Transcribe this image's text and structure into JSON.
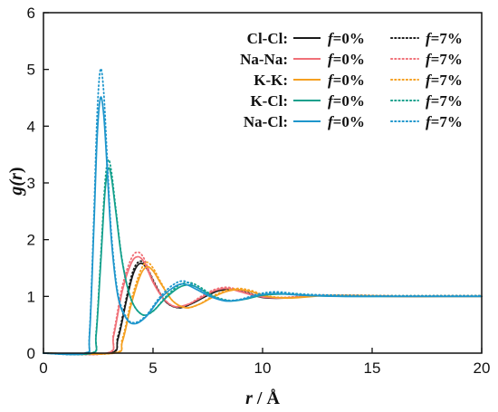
{
  "chart_data": {
    "type": "line",
    "xlabel_var": "r",
    "xlabel_unit": " / Å",
    "ylabel_prefix": "g(",
    "ylabel_var": "r",
    "ylabel_suffix": ")",
    "xlim": [
      0,
      20
    ],
    "ylim": [
      0,
      6
    ],
    "xticks": [
      0,
      5,
      10,
      15,
      20
    ],
    "yticks": [
      0,
      1,
      2,
      3,
      4,
      5,
      6
    ],
    "grid": false,
    "legend_position": "top-right",
    "legend": [
      {
        "pair": "Cl-Cl:",
        "solid_label": "f=0%",
        "dotted_label": "f=7%",
        "color": "#1a1a1a"
      },
      {
        "pair": "Na-Na:",
        "solid_label": "f=0%",
        "dotted_label": "f=7%",
        "color": "#f07078"
      },
      {
        "pair": "K-K:",
        "solid_label": "f=0%",
        "dotted_label": "f=7%",
        "color": "#f5a020"
      },
      {
        "pair": "K-Cl:",
        "solid_label": "f=0%",
        "dotted_label": "f=7%",
        "color": "#13a08c"
      },
      {
        "pair": "Na-Cl:",
        "solid_label": "f=0%",
        "dotted_label": "f=7%",
        "color": "#1e96cc"
      }
    ],
    "series": [
      {
        "name": "Cl-Cl: f=0%",
        "style": "solid",
        "color": "#1a1a1a",
        "x": [
          0,
          3.0,
          3.4,
          3.8,
          4.1,
          4.4,
          4.7,
          5.1,
          5.6,
          6.2,
          6.8,
          7.4,
          8.0,
          8.6,
          9.3,
          10.0,
          11.0,
          12.5,
          14.0,
          16.0,
          18.0,
          20.0
        ],
        "y": [
          0,
          0,
          0.25,
          0.95,
          1.4,
          1.58,
          1.5,
          1.2,
          0.9,
          0.8,
          0.88,
          1.0,
          1.1,
          1.12,
          1.06,
          0.98,
          0.97,
          1.01,
          1.01,
          1.0,
          1.0,
          1.0
        ]
      },
      {
        "name": "Cl-Cl: f=7%",
        "style": "dotted",
        "color": "#1a1a1a",
        "x": [
          0,
          3.0,
          3.4,
          3.8,
          4.1,
          4.4,
          4.7,
          5.1,
          5.6,
          6.2,
          6.8,
          7.4,
          8.0,
          8.6,
          9.3,
          10.0,
          11.0,
          12.5,
          14.0,
          16.0,
          18.0,
          20.0
        ],
        "y": [
          0,
          0,
          0.3,
          1.0,
          1.46,
          1.62,
          1.53,
          1.22,
          0.9,
          0.8,
          0.88,
          1.02,
          1.12,
          1.14,
          1.07,
          0.99,
          0.98,
          1.02,
          1.02,
          1.01,
          1.01,
          1.01
        ]
      },
      {
        "name": "Na-Na: f=0%",
        "style": "solid",
        "color": "#f07078",
        "x": [
          0,
          2.9,
          3.2,
          3.6,
          4.0,
          4.3,
          4.6,
          5.0,
          5.5,
          6.0,
          6.6,
          7.2,
          7.8,
          8.4,
          9.0,
          9.8,
          10.8,
          12.5,
          14.0,
          16.0,
          18.0,
          20.0
        ],
        "y": [
          0,
          0,
          0.3,
          1.1,
          1.58,
          1.7,
          1.6,
          1.25,
          0.95,
          0.82,
          0.86,
          0.98,
          1.1,
          1.14,
          1.08,
          1.0,
          0.97,
          1.01,
          1.01,
          1.0,
          1.0,
          1.0
        ]
      },
      {
        "name": "Na-Na: f=7%",
        "style": "dotted",
        "color": "#f07078",
        "x": [
          0,
          2.9,
          3.2,
          3.6,
          4.0,
          4.3,
          4.6,
          5.0,
          5.5,
          6.0,
          6.6,
          7.2,
          7.8,
          8.4,
          9.0,
          9.8,
          10.8,
          12.5,
          14.0,
          16.0,
          18.0,
          20.0
        ],
        "y": [
          0,
          0,
          0.35,
          1.18,
          1.66,
          1.78,
          1.66,
          1.28,
          0.96,
          0.82,
          0.86,
          1.0,
          1.12,
          1.16,
          1.1,
          1.01,
          0.98,
          1.02,
          1.02,
          1.01,
          1.01,
          1.01
        ]
      },
      {
        "name": "K-K: f=0%",
        "style": "solid",
        "color": "#f5a020",
        "x": [
          0,
          3.2,
          3.6,
          4.0,
          4.4,
          4.7,
          5.0,
          5.4,
          5.9,
          6.5,
          7.1,
          7.7,
          8.3,
          8.9,
          9.5,
          10.2,
          11.2,
          12.8,
          14.5,
          16.0,
          18.0,
          20.0
        ],
        "y": [
          0,
          0,
          0.2,
          0.85,
          1.35,
          1.52,
          1.45,
          1.2,
          0.92,
          0.8,
          0.86,
          0.98,
          1.08,
          1.12,
          1.08,
          1.0,
          0.97,
          1.01,
          1.01,
          1.0,
          1.0,
          1.0
        ]
      },
      {
        "name": "K-K: f=7%",
        "style": "dotted",
        "color": "#f5a020",
        "x": [
          0,
          3.2,
          3.6,
          4.0,
          4.4,
          4.7,
          5.0,
          5.4,
          5.9,
          6.5,
          7.1,
          7.7,
          8.3,
          8.9,
          9.5,
          10.2,
          11.2,
          12.8,
          14.5,
          16.0,
          18.0,
          20.0
        ],
        "y": [
          0,
          0,
          0.25,
          0.92,
          1.42,
          1.6,
          1.5,
          1.22,
          0.92,
          0.8,
          0.86,
          1.0,
          1.1,
          1.14,
          1.1,
          1.01,
          0.98,
          1.02,
          1.02,
          1.01,
          1.01,
          1.01
        ]
      },
      {
        "name": "K-Cl: f=0%",
        "style": "solid",
        "color": "#13a08c",
        "x": [
          0,
          2.2,
          2.4,
          2.6,
          2.8,
          2.95,
          3.1,
          3.3,
          3.6,
          4.0,
          4.5,
          5.0,
          5.6,
          6.2,
          6.7,
          7.2,
          7.8,
          8.5,
          9.2,
          10.0,
          11.0,
          12.5,
          14.0,
          16.0,
          18.0,
          20.0
        ],
        "y": [
          0,
          0,
          0.3,
          1.5,
          2.8,
          3.25,
          3.1,
          2.5,
          1.6,
          0.95,
          0.68,
          0.74,
          0.98,
          1.16,
          1.2,
          1.12,
          0.98,
          0.92,
          0.95,
          1.02,
          1.04,
          1.01,
          1.0,
          1.0,
          1.0,
          1.0
        ]
      },
      {
        "name": "K-Cl: f=7%",
        "style": "dotted",
        "color": "#13a08c",
        "x": [
          0,
          2.2,
          2.4,
          2.6,
          2.8,
          2.95,
          3.1,
          3.3,
          3.6,
          4.0,
          4.5,
          5.0,
          5.6,
          6.2,
          6.7,
          7.2,
          7.8,
          8.5,
          9.2,
          10.0,
          11.0,
          12.5,
          14.0,
          16.0,
          18.0,
          20.0
        ],
        "y": [
          0,
          0,
          0.35,
          1.6,
          2.95,
          3.4,
          3.2,
          2.55,
          1.62,
          0.95,
          0.68,
          0.74,
          1.0,
          1.2,
          1.24,
          1.15,
          1.0,
          0.93,
          0.96,
          1.04,
          1.06,
          1.02,
          1.01,
          1.01,
          1.01,
          1.01
        ]
      },
      {
        "name": "Na-Cl: f=0%",
        "style": "solid",
        "color": "#1e96cc",
        "x": [
          0,
          1.9,
          2.1,
          2.3,
          2.45,
          2.6,
          2.75,
          2.9,
          3.1,
          3.4,
          3.8,
          4.2,
          4.7,
          5.3,
          5.9,
          6.4,
          7.0,
          7.6,
          8.3,
          9.0,
          9.8,
          10.6,
          11.8,
          13.5,
          15.5,
          18.0,
          20.0
        ],
        "y": [
          0,
          0,
          0.3,
          2.2,
          3.8,
          4.5,
          4.2,
          3.3,
          2.0,
          1.0,
          0.6,
          0.52,
          0.65,
          0.95,
          1.15,
          1.22,
          1.12,
          1.0,
          0.92,
          0.94,
          1.02,
          1.05,
          1.02,
          1.0,
          1.0,
          1.0,
          1.0
        ]
      },
      {
        "name": "Na-Cl: f=7%",
        "style": "dotted",
        "color": "#1e96cc",
        "x": [
          0,
          1.9,
          2.1,
          2.3,
          2.45,
          2.6,
          2.75,
          2.9,
          3.1,
          3.4,
          3.8,
          4.2,
          4.7,
          5.3,
          5.9,
          6.4,
          7.0,
          7.6,
          8.3,
          9.0,
          9.8,
          10.6,
          11.8,
          13.5,
          15.5,
          18.0,
          20.0
        ],
        "y": [
          0,
          0,
          0.35,
          2.4,
          4.2,
          5.0,
          4.6,
          3.5,
          2.1,
          1.05,
          0.62,
          0.54,
          0.67,
          0.98,
          1.2,
          1.27,
          1.16,
          1.02,
          0.93,
          0.95,
          1.04,
          1.08,
          1.04,
          1.02,
          1.01,
          1.01,
          1.01
        ]
      }
    ]
  }
}
